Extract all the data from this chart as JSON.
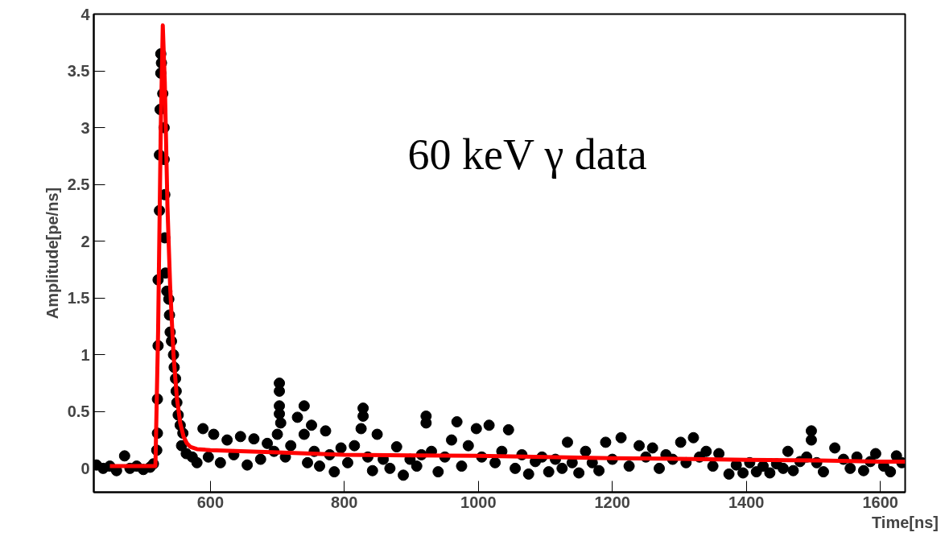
{
  "chart_data": {
    "type": "scatter",
    "xlabel": "Time[ns]",
    "ylabel": "Amplitude[pe/ns]",
    "xlim": [
      426,
      1637
    ],
    "ylim": [
      -0.21,
      4
    ],
    "xticks": [
      600,
      800,
      1000,
      1200,
      1400,
      1600
    ],
    "yticks": [
      0,
      0.5,
      1,
      1.5,
      2,
      2.5,
      3,
      3.5,
      4
    ],
    "grid": false,
    "annotations": [
      "60 keV γ data"
    ],
    "series": [
      {
        "marker": "circle",
        "color": "#000000",
        "x": [
          430,
          440,
          450,
          460,
          472,
          480,
          490,
          500,
          510,
          515,
          520,
          521,
          521,
          522,
          522,
          524,
          524,
          525,
          526,
          526,
          527,
          529,
          531,
          531,
          532,
          532,
          533,
          535,
          538,
          539,
          540,
          542,
          545,
          546,
          548,
          549,
          550,
          552,
          555,
          557,
          559,
          564,
          573,
          580,
          589,
          597,
          605,
          615,
          625,
          635,
          645,
          655,
          665,
          675,
          685,
          695,
          700,
          703,
          703,
          703,
          703,
          705,
          712,
          720,
          730,
          740,
          740,
          745,
          751,
          755,
          763,
          772,
          778,
          785,
          795,
          805,
          815,
          825,
          828,
          828,
          835,
          842,
          849,
          858,
          868,
          878,
          888,
          898,
          908,
          915,
          922,
          922,
          930,
          940,
          950,
          960,
          968,
          975,
          985,
          997,
          1005,
          1016,
          1025,
          1035,
          1045,
          1055,
          1065,
          1075,
          1085,
          1095,
          1105,
          1115,
          1125,
          1133,
          1140,
          1150,
          1160,
          1170,
          1180,
          1190,
          1200,
          1213,
          1225,
          1240,
          1250,
          1260,
          1270,
          1280,
          1290,
          1302,
          1310,
          1321,
          1330,
          1340,
          1350,
          1359,
          1374,
          1385,
          1395,
          1405,
          1415,
          1425,
          1435,
          1445,
          1455,
          1462,
          1470,
          1480,
          1490,
          1497,
          1497,
          1505,
          1515,
          1532,
          1545,
          1555,
          1565,
          1575,
          1585,
          1593,
          1605,
          1615,
          1624,
          1632
        ],
        "values": [
          0.03,
          0.0,
          0.02,
          -0.02,
          0.11,
          0.0,
          0.02,
          -0.01,
          0.01,
          0.04,
          0.16,
          0.31,
          0.61,
          1.08,
          1.66,
          2.27,
          2.76,
          3.16,
          3.48,
          3.65,
          3.57,
          3.3,
          3.0,
          2.72,
          2.41,
          2.03,
          1.72,
          1.56,
          1.49,
          1.35,
          1.2,
          1.12,
          1.0,
          0.89,
          0.79,
          0.68,
          0.58,
          0.47,
          0.38,
          0.2,
          0.31,
          0.13,
          0.1,
          0.05,
          0.35,
          0.1,
          0.3,
          0.05,
          0.25,
          0.12,
          0.28,
          0.03,
          0.26,
          0.08,
          0.22,
          0.15,
          0.3,
          0.75,
          0.68,
          0.55,
          0.48,
          0.4,
          0.1,
          0.2,
          0.45,
          0.55,
          0.3,
          0.05,
          0.38,
          0.15,
          0.02,
          0.33,
          0.12,
          -0.03,
          0.18,
          0.05,
          0.2,
          0.35,
          0.53,
          0.46,
          0.1,
          -0.02,
          0.3,
          0.08,
          0.0,
          0.19,
          -0.06,
          0.08,
          0.02,
          0.12,
          0.46,
          0.4,
          0.15,
          -0.03,
          0.1,
          0.25,
          0.41,
          0.02,
          0.2,
          0.35,
          0.1,
          0.38,
          0.05,
          0.15,
          0.34,
          0.0,
          0.12,
          -0.05,
          0.06,
          0.1,
          -0.03,
          0.08,
          0.0,
          0.23,
          0.05,
          -0.04,
          0.15,
          0.05,
          -0.02,
          0.23,
          0.08,
          0.27,
          0.02,
          0.2,
          0.1,
          0.18,
          0.0,
          0.12,
          0.08,
          0.23,
          0.05,
          0.27,
          0.1,
          0.15,
          0.02,
          0.13,
          -0.05,
          0.03,
          -0.04,
          0.05,
          -0.03,
          0.02,
          -0.04,
          0.04,
          0.0,
          0.15,
          -0.02,
          0.06,
          0.1,
          0.33,
          0.25,
          0.05,
          -0.03,
          0.18,
          0.08,
          0.0,
          0.1,
          -0.02,
          0.06,
          0.13,
          0.02,
          -0.03,
          0.11,
          0.05
        ]
      },
      {
        "type": "line",
        "color": "#ff0000",
        "x": [
          450,
          518,
          522,
          526,
          529,
          532,
          536,
          540,
          545,
          550,
          555,
          560,
          565,
          570,
          580,
          600,
          700,
          800,
          900,
          1000,
          1100,
          1200,
          1300,
          1400,
          1500,
          1600,
          1637
        ],
        "values": [
          0.02,
          0.02,
          1.2,
          3.0,
          3.9,
          3.4,
          2.3,
          1.6,
          1.0,
          0.62,
          0.4,
          0.28,
          0.22,
          0.19,
          0.17,
          0.16,
          0.14,
          0.12,
          0.115,
          0.11,
          0.1,
          0.09,
          0.085,
          0.075,
          0.07,
          0.06,
          0.06
        ]
      }
    ]
  }
}
